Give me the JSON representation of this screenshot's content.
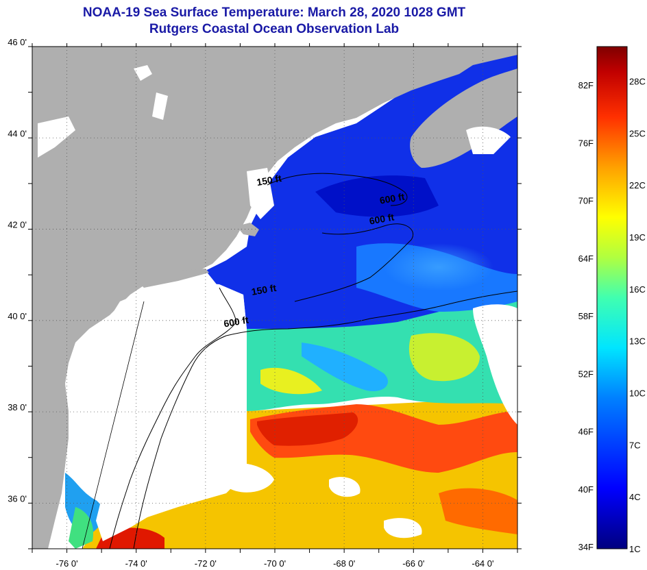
{
  "title": {
    "line1": "NOAA-19 Sea Surface Temperature:  March 28, 2020 1028 GMT",
    "line2": "Rutgers Coastal Ocean Observation Lab"
  },
  "axes": {
    "lon_range": [
      -77,
      -63
    ],
    "lat_range": [
      35,
      46
    ],
    "lon_ticks": [
      {
        "value": -76,
        "label": "-76 0'"
      },
      {
        "value": -74,
        "label": "-74 0'"
      },
      {
        "value": -72,
        "label": "-72 0'"
      },
      {
        "value": -70,
        "label": "-70 0'"
      },
      {
        "value": -68,
        "label": "-68 0'"
      },
      {
        "value": -66,
        "label": "-66 0'"
      },
      {
        "value": -64,
        "label": "-64 0'"
      }
    ],
    "lat_ticks": [
      {
        "value": 36,
        "label": "36 0'"
      },
      {
        "value": 38,
        "label": "38 0'"
      },
      {
        "value": 40,
        "label": "40 0'"
      },
      {
        "value": 42,
        "label": "42 0'"
      },
      {
        "value": 44,
        "label": "44 0'"
      },
      {
        "value": 46,
        "label": "46 0'"
      }
    ]
  },
  "contour_labels": [
    {
      "text": "600 ft",
      "lon": -66.6,
      "lat": 42.6
    },
    {
      "text": "600 ft",
      "lon": -66.9,
      "lat": 42.15
    },
    {
      "text": "150 ft",
      "lon": -70.3,
      "lat": 40.6
    },
    {
      "text": "600 ft",
      "lon": -71.1,
      "lat": 39.9
    },
    {
      "text": "150 ft",
      "lon": -70.15,
      "lat": 43.0
    }
  ],
  "colorbar": {
    "min_c": 1,
    "max_c": 30,
    "fahrenheit_labels": [
      "82F",
      "76F",
      "70F",
      "64F",
      "58F",
      "52F",
      "46F",
      "40F",
      "34F"
    ],
    "celsius_labels": [
      "28C",
      "25C",
      "22C",
      "19C",
      "16C",
      "13C",
      "10C",
      "7C",
      "4C",
      "1C"
    ]
  },
  "colors": {
    "land": "#afafaf",
    "cloud": "#ffffff",
    "title": "#1a1aa6"
  }
}
